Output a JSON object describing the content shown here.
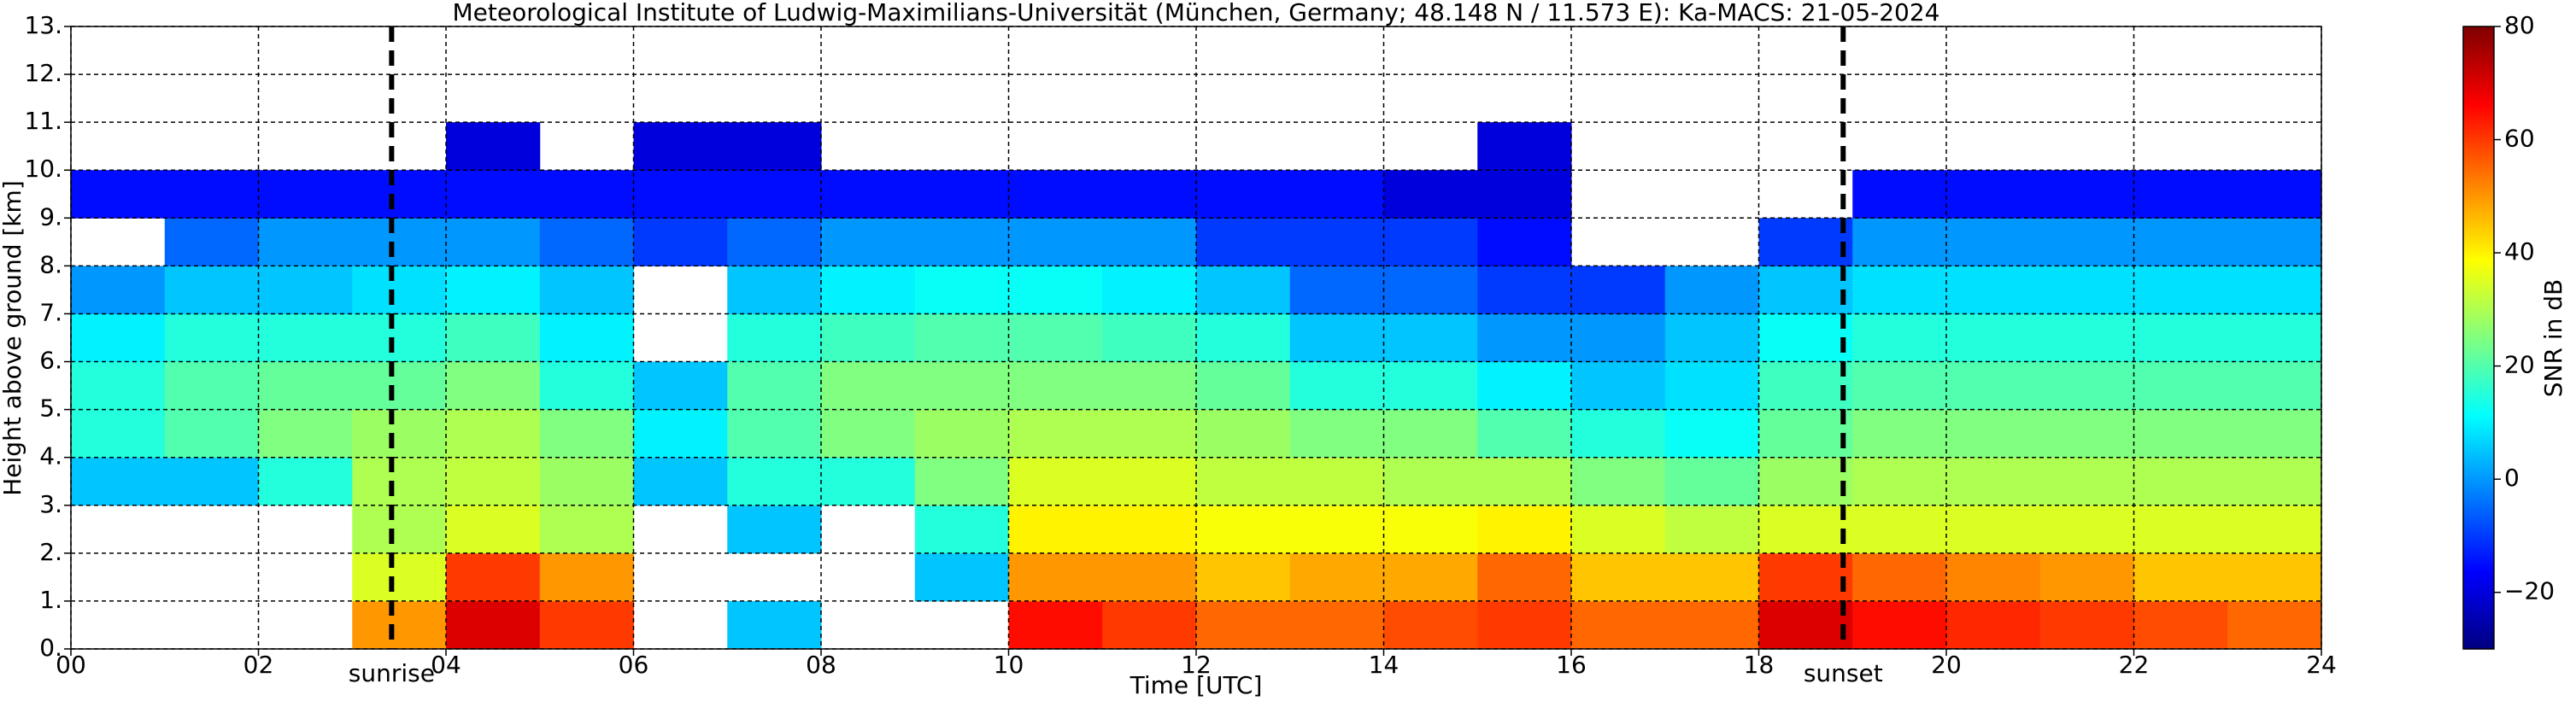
{
  "chart_data": {
    "type": "heatmap",
    "title": "Meteorological Institute of Ludwig-Maximilians-Universität (München, Germany; 48.148 N / 11.573 E):    Ka-MACS: 21-05-2024",
    "xlabel": "Time [UTC]",
    "ylabel": "Height above ground [km]",
    "colorbar_label": "SNR in dB",
    "xlim": [
      0,
      24
    ],
    "ylim": [
      0,
      13
    ],
    "clim": [
      -30,
      80
    ],
    "colormap": "jet",
    "grid": true,
    "xticks": [
      {
        "value": 0,
        "label": "00"
      },
      {
        "value": 2,
        "label": "02"
      },
      {
        "value": 4,
        "label": "04"
      },
      {
        "value": 6,
        "label": "06"
      },
      {
        "value": 8,
        "label": "08"
      },
      {
        "value": 10,
        "label": "10"
      },
      {
        "value": 12,
        "label": "12"
      },
      {
        "value": 14,
        "label": "14"
      },
      {
        "value": 16,
        "label": "16"
      },
      {
        "value": 18,
        "label": "18"
      },
      {
        "value": 20,
        "label": "20"
      },
      {
        "value": 22,
        "label": "22"
      },
      {
        "value": 24,
        "label": "24"
      }
    ],
    "yticks": [
      {
        "value": 0,
        "label": "0."
      },
      {
        "value": 1,
        "label": "1."
      },
      {
        "value": 2,
        "label": "2."
      },
      {
        "value": 3,
        "label": "3."
      },
      {
        "value": 4,
        "label": "4."
      },
      {
        "value": 5,
        "label": "5."
      },
      {
        "value": 6,
        "label": "6."
      },
      {
        "value": 7,
        "label": "7."
      },
      {
        "value": 8,
        "label": "8."
      },
      {
        "value": 9,
        "label": "9."
      },
      {
        "value": 10,
        "label": "10."
      },
      {
        "value": 11,
        "label": "11."
      },
      {
        "value": 12,
        "label": "12."
      },
      {
        "value": 13,
        "label": "13."
      }
    ],
    "cticks": [
      {
        "value": -20,
        "label": "−20"
      },
      0,
      20,
      40,
      60,
      80
    ],
    "annotations": [
      {
        "text": "sunrise",
        "x": 3.42
      },
      {
        "text": "sunset",
        "x": 18.9
      }
    ],
    "xbins": [
      0,
      1,
      2,
      3,
      4,
      5,
      6,
      7,
      8,
      9,
      10,
      11,
      12,
      13,
      14,
      15,
      16,
      17,
      18,
      19,
      20,
      21,
      22,
      23,
      24
    ],
    "ybins": [
      0,
      1,
      2,
      3,
      4,
      5,
      6,
      7,
      8,
      9,
      10,
      11
    ],
    "values": [
      [
        null,
        null,
        null,
        5,
        15,
        15,
        10,
        0,
        null,
        -15,
        null
      ],
      [
        null,
        null,
        null,
        5,
        20,
        20,
        15,
        5,
        -5,
        -15,
        null
      ],
      [
        null,
        null,
        null,
        15,
        25,
        22,
        15,
        5,
        0,
        -15,
        null
      ],
      [
        50,
        35,
        30,
        30,
        28,
        22,
        15,
        8,
        0,
        -15,
        null
      ],
      [
        70,
        60,
        35,
        32,
        30,
        25,
        18,
        10,
        0,
        -15,
        -20
      ],
      [
        60,
        50,
        30,
        28,
        25,
        15,
        10,
        5,
        -5,
        -15,
        null
      ],
      [
        null,
        null,
        null,
        5,
        10,
        5,
        null,
        null,
        -10,
        -15,
        -20
      ],
      [
        5,
        null,
        5,
        15,
        20,
        20,
        15,
        5,
        -5,
        -15,
        -20
      ],
      [
        null,
        null,
        null,
        15,
        25,
        25,
        18,
        10,
        0,
        -15,
        null
      ],
      [
        null,
        5,
        15,
        25,
        28,
        25,
        20,
        12,
        0,
        -15,
        null
      ],
      [
        65,
        50,
        40,
        35,
        30,
        25,
        20,
        12,
        0,
        -15,
        null
      ],
      [
        60,
        50,
        40,
        35,
        30,
        25,
        18,
        10,
        0,
        -15,
        null
      ],
      [
        55,
        45,
        38,
        32,
        28,
        22,
        15,
        5,
        -10,
        -15,
        null
      ],
      [
        55,
        48,
        38,
        32,
        25,
        15,
        5,
        -5,
        -10,
        -15,
        null
      ],
      [
        58,
        48,
        38,
        30,
        25,
        15,
        5,
        -5,
        -10,
        -20,
        null
      ],
      [
        60,
        55,
        40,
        30,
        20,
        10,
        0,
        -10,
        -15,
        -20,
        -20
      ],
      [
        55,
        45,
        35,
        25,
        15,
        5,
        0,
        -10,
        null,
        null,
        null
      ],
      [
        55,
        45,
        32,
        22,
        12,
        8,
        5,
        0,
        null,
        null,
        null
      ],
      [
        70,
        60,
        35,
        28,
        22,
        18,
        12,
        5,
        -10,
        null,
        null
      ],
      [
        65,
        55,
        35,
        30,
        25,
        20,
        15,
        8,
        0,
        -15,
        null
      ],
      [
        62,
        52,
        35,
        30,
        25,
        20,
        15,
        8,
        0,
        -15,
        null
      ],
      [
        60,
        50,
        35,
        30,
        25,
        20,
        15,
        8,
        0,
        -15,
        null
      ],
      [
        58,
        45,
        35,
        30,
        25,
        20,
        15,
        8,
        0,
        -15,
        null
      ],
      [
        55,
        45,
        35,
        30,
        25,
        20,
        15,
        8,
        0,
        -15,
        null
      ]
    ]
  }
}
